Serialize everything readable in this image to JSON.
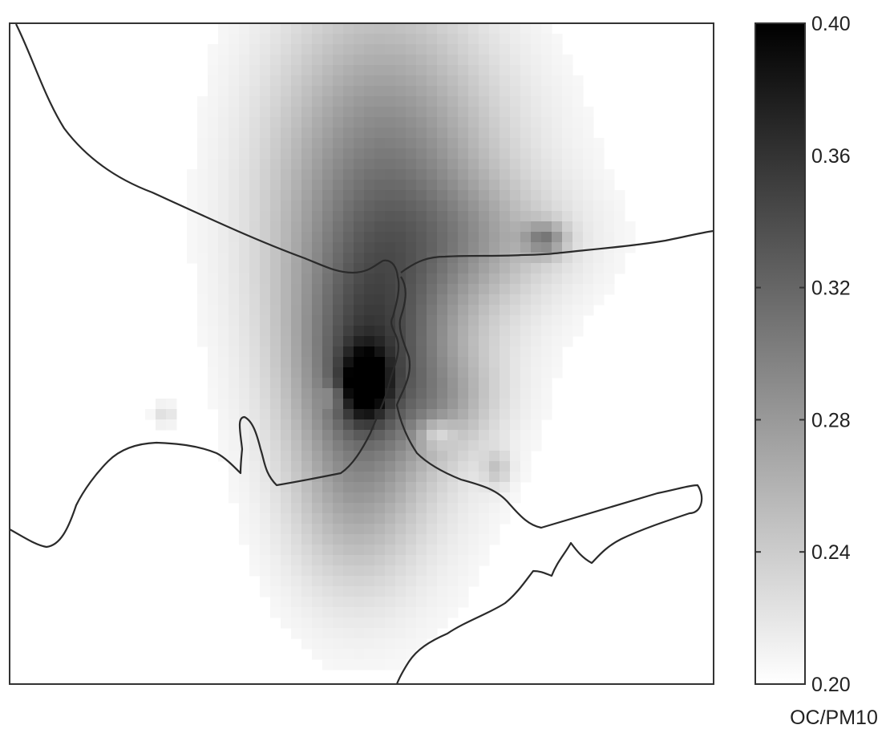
{
  "chart_data": {
    "type": "heatmap",
    "title": "",
    "xlabel": "",
    "ylabel": "",
    "colorbar": {
      "label": "OC/PM10",
      "range": [
        0.2,
        0.4
      ],
      "ticks": [
        0.2,
        0.24,
        0.28,
        0.32,
        0.36,
        0.4
      ],
      "tick_labels": [
        "0.20",
        "0.24",
        "0.28",
        "0.32",
        "0.36",
        "0.40"
      ],
      "colormap": "grayscale (white = low, black = high)"
    },
    "grid": false,
    "background_value": 0.2,
    "plume": {
      "description": "elongated north–south plume of elevated OC/PM10 centred on the river crossing",
      "peak_value": 0.4,
      "secondary_hotspot_value": 0.33
    },
    "overlay": "coastline / river outlines drawn as dark lines"
  },
  "colors": {
    "low": "#ffffff",
    "high": "#000000",
    "outline": "#2a2a2a",
    "frame": "#333333"
  }
}
